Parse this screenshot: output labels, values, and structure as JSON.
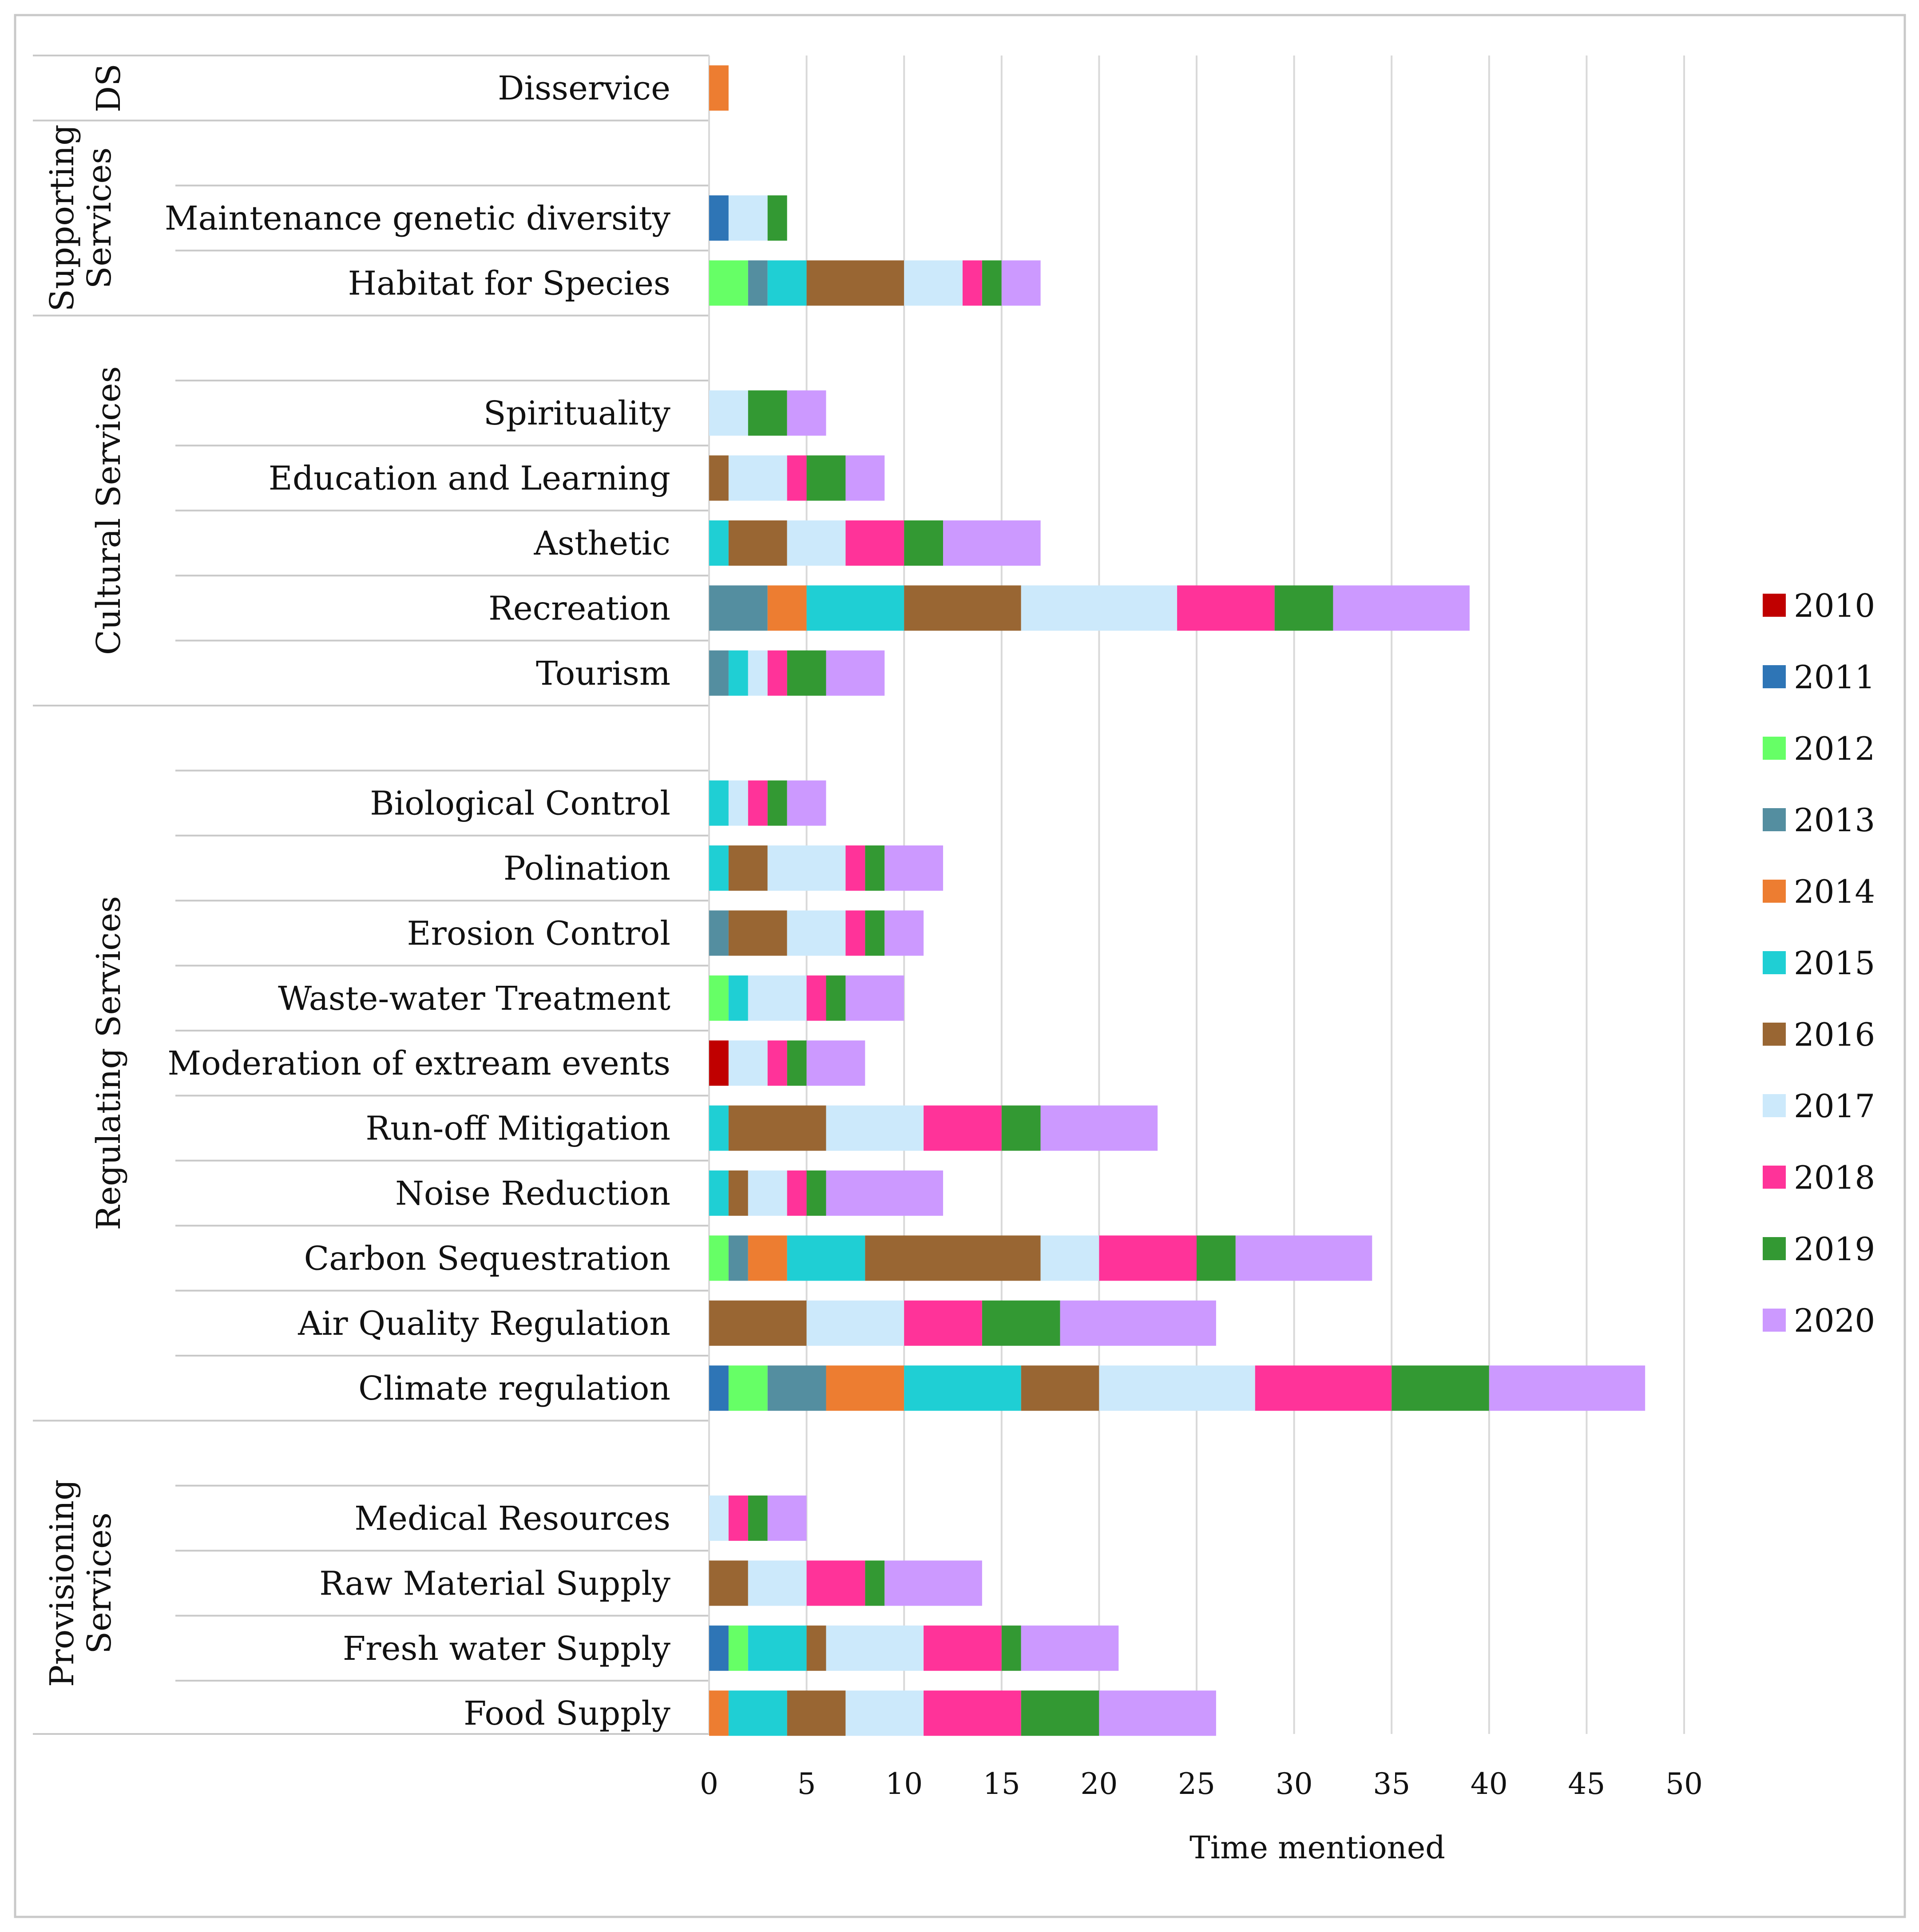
{
  "chart_data": {
    "type": "bar",
    "orientation": "horizontal",
    "stacked": true,
    "title": "",
    "xlabel": "Time mentioned",
    "ylabel": "",
    "xlim": [
      0,
      50
    ],
    "xticks": [
      0,
      5,
      10,
      15,
      20,
      25,
      30,
      35,
      40,
      45,
      50
    ],
    "grid": "vertical",
    "legend_position": "right",
    "series_names": [
      "2010",
      "2011",
      "2012",
      "2013",
      "2014",
      "2015",
      "2016",
      "2017",
      "2018",
      "2019",
      "2020"
    ],
    "series_colors": [
      "#c00000",
      "#2e75b6",
      "#66ff66",
      "#548ea0",
      "#ed7d31",
      "#1fcfd4",
      "#996633",
      "#cce9fb",
      "#ff3399",
      "#339933",
      "#cc99ff"
    ],
    "groups": [
      {
        "label_lines": [
          "DS"
        ],
        "categories": [
          {
            "name": "Disservice",
            "values": [
              0,
              0,
              0,
              0,
              1,
              0,
              0,
              0,
              0,
              0,
              0
            ]
          }
        ]
      },
      {
        "label_lines": [
          "Supporting",
          "Services"
        ],
        "categories": [
          {
            "name": "Maintenance genetic diversity",
            "values": [
              0,
              1,
              0,
              0,
              0,
              0,
              0,
              2,
              0,
              1,
              0
            ]
          },
          {
            "name": "Habitat for Species",
            "values": [
              0,
              0,
              2,
              1,
              0,
              2,
              5,
              3,
              1,
              1,
              2
            ]
          }
        ]
      },
      {
        "label_lines": [
          "Cultural Services"
        ],
        "categories": [
          {
            "name": "Spirituality",
            "values": [
              0,
              0,
              0,
              0,
              0,
              0,
              0,
              2,
              0,
              2,
              2
            ]
          },
          {
            "name": "Education and Learning",
            "values": [
              0,
              0,
              0,
              0,
              0,
              0,
              1,
              3,
              1,
              2,
              2
            ]
          },
          {
            "name": "Asthetic",
            "values": [
              0,
              0,
              0,
              0,
              0,
              1,
              3,
              3,
              3,
              2,
              5
            ]
          },
          {
            "name": "Recreation",
            "values": [
              0,
              0,
              0,
              3,
              2,
              5,
              6,
              8,
              5,
              3,
              7
            ]
          },
          {
            "name": "Tourism",
            "values": [
              0,
              0,
              0,
              1,
              0,
              1,
              0,
              1,
              1,
              2,
              3
            ]
          }
        ]
      },
      {
        "label_lines": [
          "Regulating Services"
        ],
        "categories": [
          {
            "name": "Biological Control",
            "values": [
              0,
              0,
              0,
              0,
              0,
              1,
              0,
              1,
              1,
              1,
              2
            ]
          },
          {
            "name": "Polination",
            "values": [
              0,
              0,
              0,
              0,
              0,
              1,
              2,
              4,
              1,
              1,
              3
            ]
          },
          {
            "name": "Erosion Control",
            "values": [
              0,
              0,
              0,
              1,
              0,
              0,
              3,
              3,
              1,
              1,
              2
            ]
          },
          {
            "name": "Waste-water Treatment",
            "values": [
              0,
              0,
              1,
              0,
              0,
              1,
              0,
              3,
              1,
              1,
              3
            ]
          },
          {
            "name": "Moderation of extream events",
            "values": [
              1,
              0,
              0,
              0,
              0,
              0,
              0,
              2,
              1,
              1,
              3
            ]
          },
          {
            "name": "Run-off Mitigation",
            "values": [
              0,
              0,
              0,
              0,
              0,
              1,
              5,
              5,
              4,
              2,
              6
            ]
          },
          {
            "name": "Noise Reduction",
            "values": [
              0,
              0,
              0,
              0,
              0,
              1,
              1,
              2,
              1,
              1,
              6
            ]
          },
          {
            "name": "Carbon Sequestration",
            "values": [
              0,
              0,
              1,
              1,
              2,
              4,
              9,
              3,
              5,
              2,
              7
            ]
          },
          {
            "name": "Air Quality Regulation",
            "values": [
              0,
              0,
              0,
              0,
              0,
              0,
              5,
              5,
              4,
              4,
              8
            ]
          },
          {
            "name": "Climate regulation",
            "values": [
              0,
              1,
              2,
              3,
              4,
              6,
              4,
              8,
              7,
              5,
              8
            ]
          }
        ]
      },
      {
        "label_lines": [
          "Provisioning",
          "Services"
        ],
        "categories": [
          {
            "name": "Medical Resources",
            "values": [
              0,
              0,
              0,
              0,
              0,
              0,
              0,
              1,
              1,
              1,
              2
            ]
          },
          {
            "name": "Raw Material Supply",
            "values": [
              0,
              0,
              0,
              0,
              0,
              0,
              2,
              3,
              3,
              1,
              5
            ]
          },
          {
            "name": "Fresh water Supply",
            "values": [
              0,
              1,
              1,
              0,
              0,
              3,
              1,
              5,
              4,
              1,
              5
            ]
          },
          {
            "name": "Food Supply",
            "values": [
              0,
              0,
              0,
              0,
              1,
              3,
              3,
              4,
              5,
              4,
              6
            ]
          }
        ]
      }
    ]
  }
}
